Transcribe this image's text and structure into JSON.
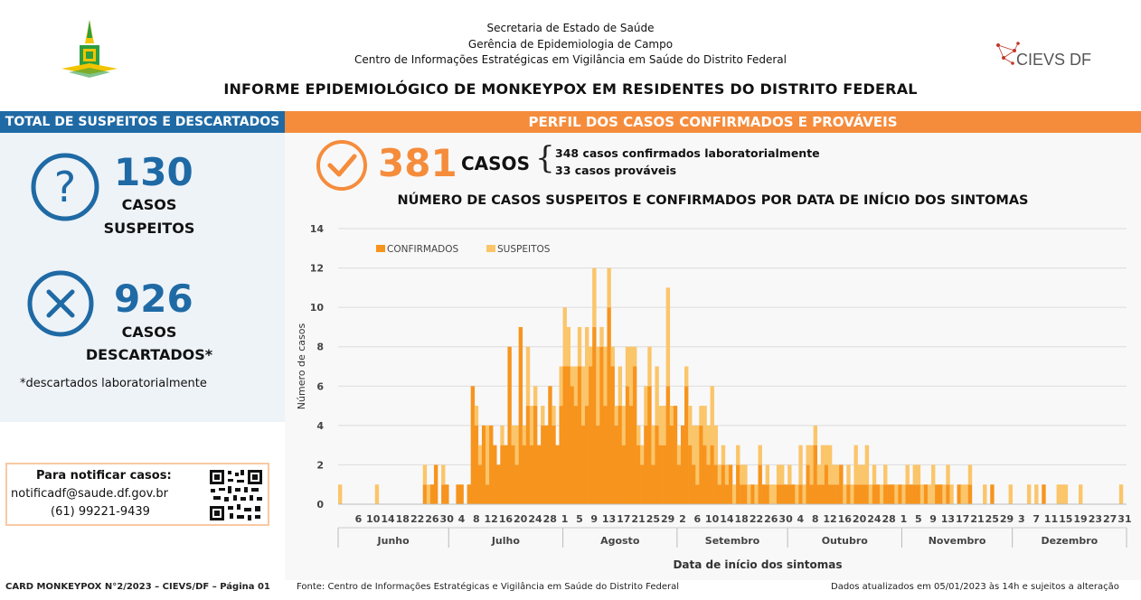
{
  "header": {
    "line1": "Secretaria de Estado de Saúde",
    "line2": "Gerência de Epidemiologia de Campo",
    "line3": "Centro de Informações Estratégicas em Vigilância em Saúde do Distrito Federal",
    "logo_right": "CIEVS DF"
  },
  "title": "INFORME EPIDEMIOLÓGICO DE MONKEYPOX EM RESIDENTES DO DISTRITO FEDERAL",
  "left": {
    "header": "TOTAL DE SUSPEITOS E DESCARTADOS",
    "suspects_num": "130",
    "suspects_l1": "CASOS",
    "suspects_l2": "SUSPEITOS",
    "discarded_num": "926",
    "discarded_l1": "CASOS",
    "discarded_l2": "DESCARTADOS*",
    "footnote": "*descartados laboratorialmente",
    "notify_title": "Para notificar casos:",
    "notify_email": "notificadf@saude.df.gov.br",
    "notify_phone": "(61) 99221-9439"
  },
  "right": {
    "header": "PERFIL DOS CASOS CONFIRMADOS E PROVÁVEIS",
    "cases_num": "381",
    "cases_lbl": "CASOS",
    "confirmed_txt": "348 casos confirmados laboratorialmente",
    "probable_txt": "33 casos prováveis"
  },
  "footer": {
    "left": "CARD MONKEYPOX N°2/2023 – CIEVS/DF – Página 01",
    "mid": "Fonte: Centro de Informações Estratégicas e Vigilância em Saúde do Distrito Federal",
    "right": "Dados atualizados em 05/01/2023 às 14h e sujeitos a alteração"
  },
  "colors": {
    "blue": "#1f6aa5",
    "orange": "#f58c3c",
    "confirmed": "#f7941d",
    "suspect": "#fbc56a"
  },
  "chart_data": {
    "type": "bar",
    "stacked": true,
    "title": "NÚMERO DE CASOS SUSPEITOS E CONFIRMADOS POR DATA DE INÍCIO DOS SINTOMAS",
    "xlabel": "Data de início dos sintomas",
    "ylabel": "Número de casos",
    "ylim": [
      0,
      14
    ],
    "yticks": [
      0,
      2,
      4,
      6,
      8,
      10,
      12,
      14
    ],
    "grid": true,
    "legend_position": "top-left",
    "months": [
      {
        "name": "Junho",
        "days": 30
      },
      {
        "name": "Julho",
        "days": 31
      },
      {
        "name": "Agosto",
        "days": 31
      },
      {
        "name": "Setembro",
        "days": 30
      },
      {
        "name": "Outubro",
        "days": 31
      },
      {
        "name": "Novembro",
        "days": 30
      },
      {
        "name": "Dezembro",
        "days": 31
      }
    ],
    "tick_days": [
      [
        6,
        10,
        14,
        18,
        22,
        26,
        30
      ],
      [
        4,
        8,
        12,
        16,
        20,
        24,
        28
      ],
      [
        1,
        5,
        9,
        13,
        17,
        21,
        25,
        29
      ],
      [
        2,
        6,
        10,
        14,
        18,
        22,
        26,
        30
      ],
      [
        4,
        8,
        12,
        16,
        20,
        24,
        28
      ],
      [
        1,
        5,
        9,
        13,
        17,
        21,
        25,
        29
      ],
      [
        3,
        7,
        11,
        15,
        19,
        23,
        27,
        31
      ]
    ],
    "series": [
      {
        "name": "CONFIRMADOS",
        "values": [
          0,
          0,
          0,
          0,
          0,
          0,
          0,
          0,
          0,
          0,
          0,
          0,
          0,
          0,
          0,
          0,
          0,
          0,
          0,
          0,
          0,
          0,
          0,
          1,
          0,
          1,
          2,
          0,
          1,
          1,
          0,
          0,
          1,
          1,
          0,
          1,
          6,
          4,
          2,
          4,
          1,
          4,
          3,
          2,
          3,
          3,
          8,
          3,
          2,
          9,
          3,
          5,
          3,
          5,
          3,
          4,
          4,
          6,
          4,
          3,
          5,
          7,
          7,
          6,
          5,
          7,
          4,
          5,
          7,
          9,
          4,
          8,
          5,
          10,
          7,
          4,
          5,
          3,
          6,
          5,
          7,
          3,
          2,
          4,
          6,
          2,
          4,
          3,
          3,
          6,
          4,
          5,
          2,
          4,
          6,
          3,
          2,
          1,
          4,
          3,
          2,
          3,
          2,
          1,
          2,
          1,
          2,
          0,
          2,
          1,
          1,
          0,
          1,
          0,
          2,
          1,
          1,
          0,
          0,
          1,
          1,
          1,
          1,
          1,
          0,
          1,
          0,
          2,
          1,
          3,
          1,
          1,
          2,
          1,
          1,
          1,
          2,
          0,
          1,
          0,
          1,
          1,
          1,
          1,
          0,
          1,
          1,
          0,
          1,
          1,
          1,
          0,
          1,
          0,
          1,
          1,
          1,
          1,
          0,
          1,
          0,
          0,
          1,
          1,
          0,
          1,
          0,
          0,
          1,
          0,
          0,
          1,
          0,
          0,
          0,
          0,
          0,
          1,
          0,
          0,
          0,
          0,
          0,
          0,
          0,
          0,
          0,
          0,
          0,
          0,
          0,
          1,
          0,
          0,
          0,
          0,
          0,
          0,
          0,
          0,
          0,
          0,
          0,
          0,
          0,
          0,
          0,
          0,
          0,
          0,
          0,
          0,
          0,
          0
        ]
      },
      {
        "name": "SUSPEITOS",
        "values": [
          1,
          0,
          0,
          0,
          0,
          0,
          0,
          0,
          0,
          0,
          1,
          0,
          0,
          0,
          0,
          0,
          0,
          0,
          0,
          0,
          0,
          0,
          0,
          1,
          1,
          0,
          0,
          0,
          1,
          0,
          0,
          0,
          0,
          0,
          0,
          0,
          0,
          1,
          1,
          0,
          3,
          0,
          0,
          0,
          1,
          0,
          0,
          1,
          2,
          0,
          1,
          3,
          2,
          1,
          0,
          1,
          0,
          0,
          1,
          0,
          2,
          3,
          2,
          1,
          2,
          2,
          3,
          4,
          1,
          3,
          4,
          1,
          3,
          2,
          1,
          1,
          2,
          2,
          2,
          3,
          1,
          1,
          1,
          2,
          2,
          2,
          3,
          2,
          2,
          5,
          1,
          0,
          1,
          0,
          1,
          2,
          2,
          3,
          1,
          2,
          2,
          3,
          2,
          1,
          1,
          1,
          0,
          1,
          1,
          1,
          1,
          1,
          0,
          1,
          1,
          0,
          1,
          1,
          1,
          1,
          1,
          0,
          1,
          0,
          1,
          2,
          1,
          1,
          2,
          1,
          1,
          2,
          1,
          2,
          1,
          1,
          0,
          1,
          1,
          1,
          2,
          1,
          1,
          2,
          1,
          1,
          0,
          1,
          1,
          0,
          0,
          1,
          0,
          1,
          1,
          0,
          1,
          1,
          1,
          0,
          1,
          2,
          0,
          0,
          1,
          1,
          1,
          0,
          0,
          1,
          1,
          1,
          0,
          0,
          0,
          1,
          0,
          0,
          0,
          0,
          0,
          0,
          1,
          0,
          0,
          0,
          0,
          1,
          0,
          1,
          0,
          0,
          0,
          0,
          0,
          1,
          1,
          1,
          0,
          0,
          0,
          1,
          0,
          0,
          0,
          0,
          0,
          0,
          0,
          0,
          0,
          0,
          1,
          0
        ]
      }
    ]
  }
}
